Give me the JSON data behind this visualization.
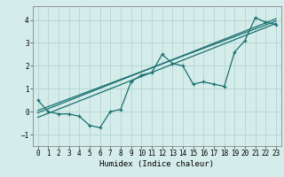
{
  "xlabel": "Humidex (Indice chaleur)",
  "ylabel": "",
  "bg_color": "#d4ecea",
  "grid_color": "#b8d8d4",
  "line_color": "#1a7070",
  "xlim": [
    -0.5,
    23.5
  ],
  "ylim": [
    -1.5,
    4.6
  ],
  "xticks": [
    0,
    1,
    2,
    3,
    4,
    5,
    6,
    7,
    8,
    9,
    10,
    11,
    12,
    13,
    14,
    15,
    16,
    17,
    18,
    19,
    20,
    21,
    22,
    23
  ],
  "yticks": [
    -1,
    0,
    1,
    2,
    3,
    4
  ],
  "scatter_x": [
    0,
    1,
    2,
    3,
    4,
    5,
    6,
    7,
    8,
    9,
    10,
    11,
    12,
    13,
    14,
    15,
    16,
    17,
    18,
    19,
    20,
    21,
    22,
    23
  ],
  "scatter_y": [
    0.5,
    0.0,
    -0.1,
    -0.1,
    -0.2,
    -0.6,
    -0.7,
    0.0,
    0.1,
    1.3,
    1.6,
    1.7,
    2.5,
    2.1,
    2.0,
    1.2,
    1.3,
    1.2,
    1.1,
    2.6,
    3.1,
    4.1,
    3.9,
    3.8
  ],
  "reg_lines": [
    [
      [
        0,
        23
      ],
      [
        -0.25,
        3.85
      ]
    ],
    [
      [
        0,
        23
      ],
      [
        -0.05,
        4.05
      ]
    ],
    [
      [
        0,
        23
      ],
      [
        0.05,
        3.95
      ]
    ]
  ],
  "font_size_ticks": 5.5,
  "font_size_xlabel": 6.5
}
